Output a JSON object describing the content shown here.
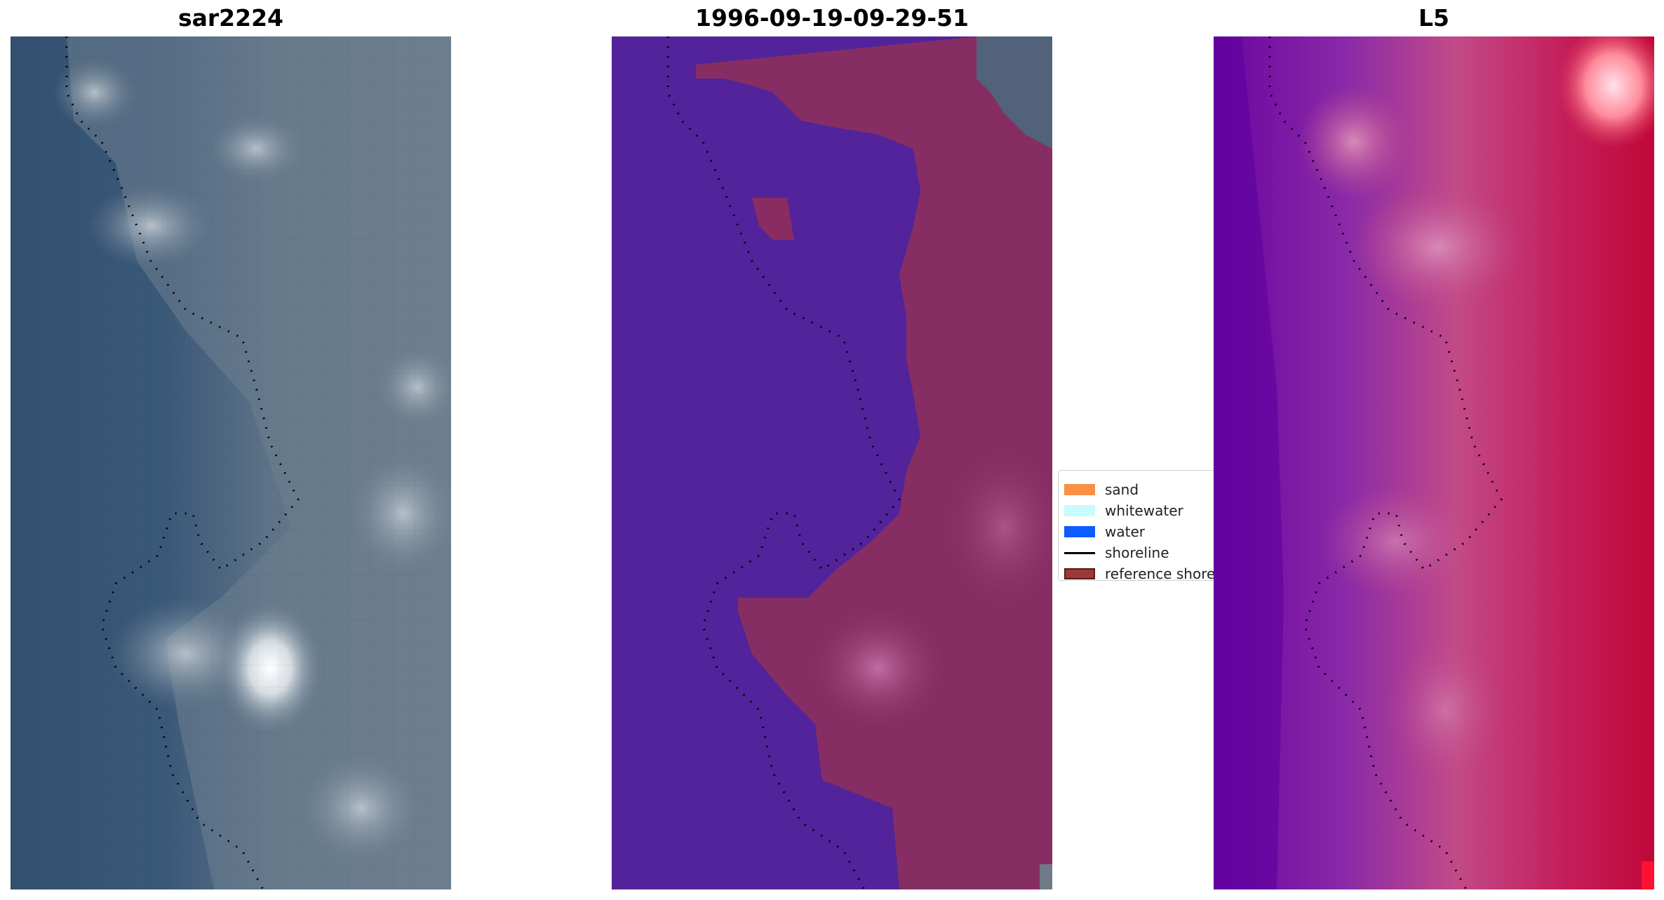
{
  "panels": [
    {
      "id": "rgb",
      "title": "sar2224"
    },
    {
      "id": "classified",
      "title": "1996-09-19-09-29-51"
    },
    {
      "id": "index",
      "title": "L5"
    }
  ],
  "legend": {
    "items": [
      {
        "label": "sand",
        "color": "#f99043",
        "kind": "patch"
      },
      {
        "label": "whitewater",
        "color": "#c8fcfc",
        "kind": "patch"
      },
      {
        "label": "water",
        "color": "#0d5cff",
        "kind": "patch"
      },
      {
        "label": "shoreline",
        "color": "#000000",
        "kind": "line"
      },
      {
        "label": "reference shoreline",
        "color": "#9a3a3a",
        "kind": "patch"
      }
    ]
  },
  "colors": {
    "water_class": "#52239a",
    "land_class": "#8a2c62",
    "ocean_rgb": "#375677",
    "land_rgb": "#6a7c8c",
    "index_low": "#5e009e",
    "index_high": "#c8103a"
  }
}
